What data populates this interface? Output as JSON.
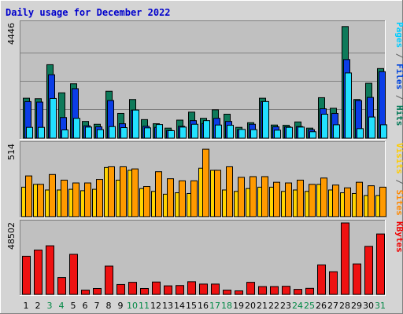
{
  "chart_data": {
    "type": "bar",
    "title": "Daily usage for December 2022",
    "days": [
      "1",
      "2",
      "3",
      "4",
      "5",
      "6",
      "7",
      "8",
      "9",
      "10",
      "11",
      "12",
      "13",
      "14",
      "15",
      "16",
      "17",
      "18",
      "19",
      "20",
      "21",
      "22",
      "23",
      "24",
      "25",
      "26",
      "27",
      "28",
      "29",
      "30",
      "31"
    ],
    "weekend_days": [
      "3",
      "4",
      "10",
      "11",
      "17",
      "18",
      "24",
      "25",
      "31"
    ],
    "panels": [
      {
        "name": "hits-files-pages",
        "ymax_label": "4446",
        "ymax": 4446,
        "right_labels": [
          {
            "text": "Pages",
            "color": "#00ccff"
          },
          {
            "text": " / ",
            "color": "#606060"
          },
          {
            "text": "Files",
            "color": "#0044dd"
          },
          {
            "text": " / ",
            "color": "#606060"
          },
          {
            "text": "Hits",
            "color": "#007755"
          }
        ],
        "series": [
          {
            "name": "Hits",
            "color": "#0e7a5a",
            "values": [
              1550,
              1530,
              2850,
              1760,
              2110,
              650,
              540,
              1820,
              960,
              1500,
              720,
              560,
              390,
              700,
              1010,
              770,
              1100,
              930,
              420,
              600,
              1550,
              510,
              500,
              630,
              390,
              1570,
              1160,
              4330,
              1500,
              2130,
              2700
            ]
          },
          {
            "name": "Files",
            "color": "#0b3de6",
            "values": [
              1420,
              1400,
              2460,
              800,
              1920,
              480,
              440,
              1460,
              560,
              1090,
              460,
              420,
              300,
              460,
              680,
              570,
              770,
              650,
              330,
              540,
              1420,
              440,
              440,
              450,
              330,
              1140,
              960,
              3050,
              1460,
              1580,
              2580
            ]
          },
          {
            "name": "Pages",
            "color": "#22e0ff",
            "values": [
              420,
              420,
              1540,
              320,
              770,
              430,
              330,
              450,
              410,
              1090,
              400,
              530,
              290,
              430,
              540,
              680,
              510,
              500,
              340,
              330,
              1420,
              310,
              420,
              430,
              250,
              930,
              520,
              2530,
              370,
              820,
              520
            ]
          }
        ]
      },
      {
        "name": "visits-sites",
        "ymax_label": "514",
        "ymax": 514,
        "right_labels": [
          {
            "text": "Visits",
            "color": "#ffcc00"
          },
          {
            "text": " / ",
            "color": "#606060"
          },
          {
            "text": "Sites",
            "color": "#ff8800"
          }
        ],
        "series": [
          {
            "name": "Visits",
            "color": "#ffd400",
            "values": [
              210,
              230,
              190,
              190,
              195,
              185,
              195,
              350,
              260,
              330,
              200,
              180,
              160,
              170,
              165,
              345,
              330,
              190,
              180,
              200,
              210,
              210,
              180,
              190,
              180,
              230,
              190,
              170,
              165,
              150,
              150
            ]
          },
          {
            "name": "Sites",
            "color": "#ff9a00",
            "values": [
              290,
              230,
              300,
              260,
              240,
              240,
              265,
              355,
              355,
              340,
              215,
              320,
              270,
              255,
              255,
              480,
              330,
              355,
              280,
              285,
              285,
              245,
              240,
              260,
              230,
              275,
              225,
              205,
              245,
              220,
              210
            ]
          }
        ]
      },
      {
        "name": "kbytes",
        "ymax_label": "48502",
        "ymax": 48502,
        "right_labels": [
          {
            "text": "KBytes",
            "color": "#ee0000"
          }
        ],
        "series": [
          {
            "name": "KBytes",
            "color": "#ee1111",
            "values": [
              25900,
              30100,
              33000,
              11400,
              27200,
              2900,
              4000,
              19200,
              6700,
              8200,
              4000,
              8400,
              5800,
              6000,
              8600,
              7000,
              7000,
              2900,
              2400,
              8200,
              5300,
              5300,
              5500,
              3400,
              4100,
              20000,
              15400,
              48500,
              20700,
              32600,
              41000
            ]
          }
        ]
      }
    ]
  }
}
